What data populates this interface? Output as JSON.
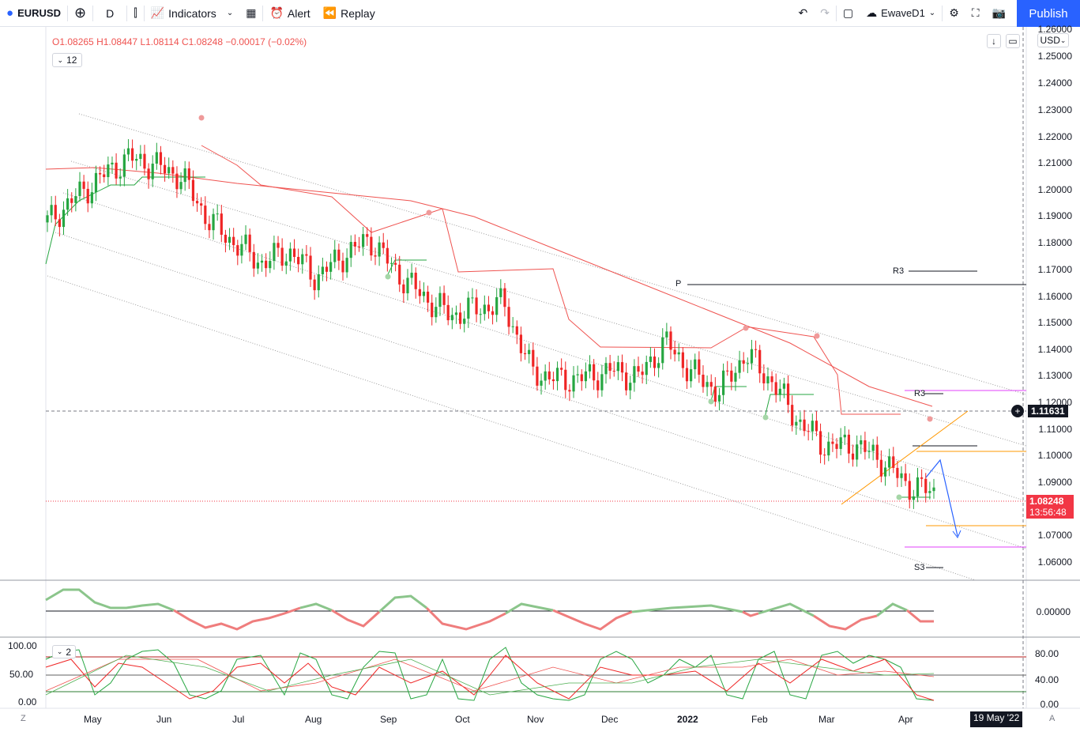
{
  "toolbar": {
    "symbol": "EURUSD",
    "interval": "D",
    "indicators_label": "Indicators",
    "alert_label": "Alert",
    "replay_label": "Replay",
    "layout_name": "EwaveD1",
    "publish_label": "Publish"
  },
  "legend": {
    "open": "O1.08265",
    "high": "H1.08447",
    "low": "L1.08114",
    "close": "C1.08248",
    "change": "−0.00017 (−0.02%)",
    "count_badge": "12",
    "osc_badge": "2",
    "currency": "USD"
  },
  "price_axis": {
    "labels": [
      "1.26000",
      "1.25000",
      "1.24000",
      "1.23000",
      "1.22000",
      "1.21000",
      "1.20000",
      "1.19000",
      "1.18000",
      "1.17000",
      "1.16000",
      "1.15000",
      "1.14000",
      "1.13000",
      "1.12000",
      "1.11000",
      "1.10000",
      "1.09000",
      "1.07000",
      "1.06000"
    ],
    "crosshair_price": "1.11631",
    "last_price": "1.08248",
    "countdown": "13:56:48"
  },
  "osc1_axis": {
    "zero_label": "0.00000"
  },
  "osc2_axis": {
    "left_labels": [
      "100.00",
      "50.00",
      "0.00"
    ],
    "right_labels": [
      "80.00",
      "40.00",
      "0.00"
    ]
  },
  "time_axis": {
    "labels": [
      "May",
      "Jun",
      "Jul",
      "Aug",
      "Sep",
      "Oct",
      "Nov",
      "Dec",
      "2022",
      "Feb",
      "Mar",
      "Apr"
    ],
    "crosshair_date": "19 May '22",
    "left_btn": "Z",
    "right_btn": "A"
  },
  "pivots": {
    "p": "P",
    "r3_top": "R3",
    "r3_low": "R3",
    "s3": "S3"
  },
  "colors": {
    "up": "#26a641",
    "down": "#ef2525",
    "accent": "#2962ff",
    "last": "#f23645"
  },
  "chart_data": {
    "type": "candlestick",
    "title": "EURUSD",
    "x": [
      "May",
      "Jun",
      "Jul",
      "Aug",
      "Sep",
      "Oct",
      "Nov",
      "Dec",
      "2022",
      "Feb",
      "Mar",
      "Apr"
    ],
    "closes": [
      1.195,
      1.205,
      1.214,
      1.222,
      1.219,
      1.214,
      1.196,
      1.186,
      1.178,
      1.183,
      1.172,
      1.181,
      1.188,
      1.174,
      1.164,
      1.156,
      1.159,
      1.161,
      1.133,
      1.129,
      1.13,
      1.133,
      1.13,
      1.145,
      1.132,
      1.124,
      1.14,
      1.128,
      1.111,
      1.101,
      1.102,
      1.096,
      1.085,
      1.082
    ],
    "ylim": [
      1.055,
      1.265
    ]
  }
}
